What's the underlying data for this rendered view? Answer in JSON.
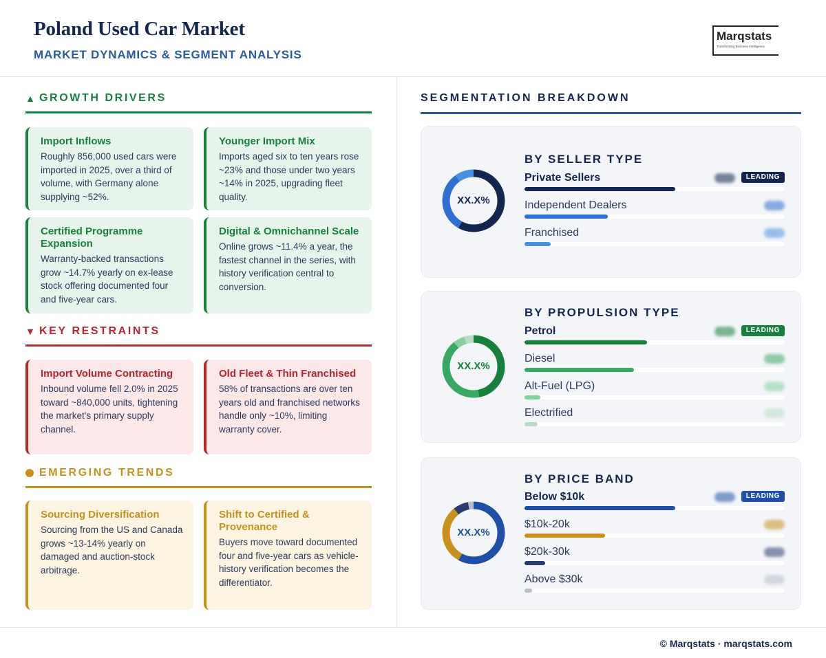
{
  "header": {
    "title": "Poland Used Car Market",
    "subtitle": "MARKET DYNAMICS & SEGMENT ANALYSIS",
    "logo_word": "Marqstats",
    "logo_tag": "Transforming Business Intelligence"
  },
  "growth": {
    "heading": "GROWTH DRIVERS",
    "cards": [
      {
        "title": "Import Inflows",
        "body": "Roughly 856,000 used cars were imported in 2025, over a third of volume, with Germany alone supplying ~52%."
      },
      {
        "title": "Younger Import Mix",
        "body": "Imports aged six to ten years rose ~23% and those under two years ~14% in 2025, upgrading fleet quality."
      },
      {
        "title": "Certified Programme Expansion",
        "body": "Warranty-backed transactions grow ~14.7% yearly on ex-lease stock offering documented four and five-year cars."
      },
      {
        "title": "Digital & Omnichannel Scale",
        "body": "Online grows ~11.4% a year, the fastest channel in the series, with history verification central to conversion."
      }
    ]
  },
  "restraints": {
    "heading": "KEY RESTRAINTS",
    "cards": [
      {
        "title": "Import Volume Contracting",
        "body": "Inbound volume fell 2.0% in 2025 toward ~840,000 units, tightening the market's primary supply channel."
      },
      {
        "title": "Old Fleet & Thin Franchised",
        "body": "58% of transactions are over ten years old and franchised networks handle only ~10%, limiting warranty cover."
      }
    ]
  },
  "trends": {
    "heading": "EMERGING TRENDS",
    "cards": [
      {
        "title": "Sourcing Diversification",
        "body": "Sourcing from the US and Canada grows ~13-14% yearly on damaged and auction-stock arbitrage."
      },
      {
        "title": "Shift to Certified & Provenance",
        "body": "Buyers move toward documented four and five-year cars as vehicle-history verification becomes the differentiator."
      }
    ]
  },
  "segmentation": {
    "heading": "SEGMENTATION BREAKDOWN",
    "badge_label": "LEADING",
    "panels": [
      {
        "title": "BY SELLER TYPE",
        "donut_label": "XX.X%",
        "label_color": "#14264f",
        "rows": [
          {
            "name": "Private Sellers",
            "share": 0.58,
            "color": "#14264f"
          },
          {
            "name": "Independent Dealers",
            "share": 0.32,
            "color": "#2e6fd0"
          },
          {
            "name": "Franchised",
            "share": 0.1,
            "color": "#4a92e0"
          }
        ]
      },
      {
        "title": "BY PROPULSION TYPE",
        "donut_label": "XX.X%",
        "label_color": "#16803c",
        "rows": [
          {
            "name": "Petrol",
            "share": 0.47,
            "color": "#16803c"
          },
          {
            "name": "Diesel",
            "share": 0.42,
            "color": "#3aa865"
          },
          {
            "name": "Alt-Fuel (LPG)",
            "share": 0.06,
            "color": "#86cfa0"
          },
          {
            "name": "Electrified",
            "share": 0.05,
            "color": "#b7dcc5"
          }
        ]
      },
      {
        "title": "BY PRICE BAND",
        "donut_label": "XX.X%",
        "label_color": "#1e50a8",
        "rows": [
          {
            "name": "Below $10k",
            "share": 0.58,
            "color": "#1e50a8"
          },
          {
            "name": "$10k-20k",
            "share": 0.31,
            "color": "#c8901e"
          },
          {
            "name": "$20k-30k",
            "share": 0.08,
            "color": "#2a3d6e"
          },
          {
            "name": "Above $30k",
            "share": 0.03,
            "color": "#b9bec8"
          }
        ]
      }
    ]
  },
  "footer": {
    "text": "© Marqstats · marqstats.com"
  }
}
